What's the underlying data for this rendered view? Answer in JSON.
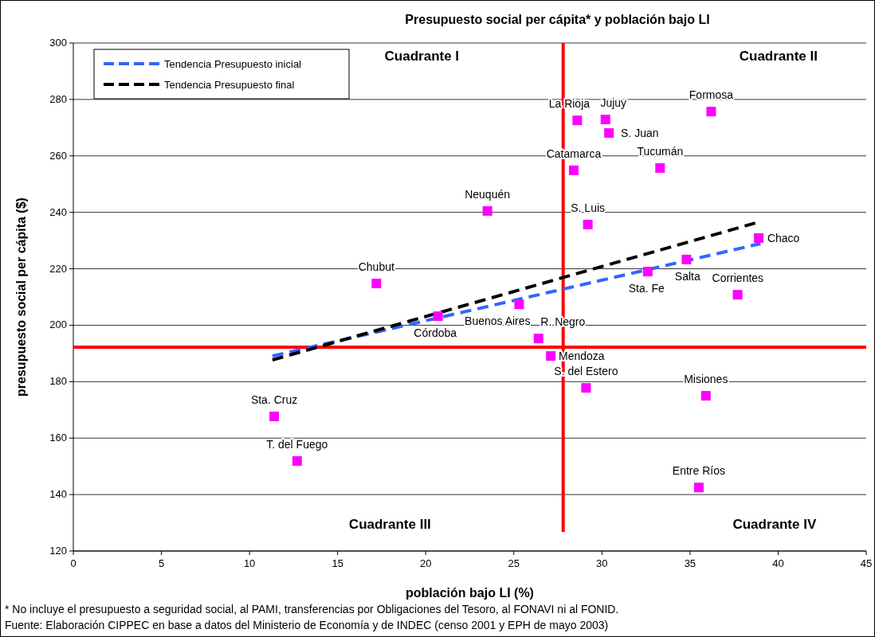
{
  "chart_data": {
    "type": "scatter",
    "title": "Presupuesto social per cápita* y población bajo LI",
    "xlabel": "población bajo LI (%)",
    "ylabel": "presupuesto social per cápita ($)",
    "xlim": [
      0,
      45
    ],
    "xticks": [
      0,
      5,
      10,
      15,
      20,
      25,
      30,
      35,
      40,
      45
    ],
    "ylim": [
      120,
      300
    ],
    "yticks": [
      120,
      140,
      160,
      180,
      200,
      220,
      240,
      260,
      280,
      300
    ],
    "grid": "y",
    "legend": "top left",
    "series": [
      {
        "color": "#ff00ff",
        "marker": "square",
        "x": [
          28.6,
          30.2,
          30.4,
          36.2,
          28.4,
          33.3,
          23.5,
          29.2,
          38.9,
          34.8,
          32.6,
          17.2,
          37.7,
          20.7,
          25.3,
          26.4,
          27.1,
          29.1,
          35.9,
          11.4,
          12.7,
          35.5
        ],
        "values": [
          272.6,
          272.9,
          268.1,
          275.7,
          254.9,
          255.7,
          240.5,
          235.7,
          230.9,
          223.3,
          219,
          214.8,
          210.8,
          203.2,
          207.4,
          195.3,
          189.1,
          177.8,
          175,
          167.7,
          151.9,
          142.5
        ]
      },
      {
        "type": "line",
        "name": "Tendencia Presupuesto inicial",
        "color": "#3366ff",
        "line_style": "dashed",
        "x": [
          11.3,
          39.0
        ],
        "values": [
          189.1,
          228.9
        ]
      },
      {
        "type": "line",
        "name": "Tendencia Presupuesto final",
        "color": "#000000",
        "line_style": "dashed",
        "x": [
          11.3,
          38.7
        ],
        "values": [
          187.7,
          236.2
        ]
      }
    ],
    "ref_lines": [
      {
        "axis": "x",
        "value": 27.8,
        "color": "#ff0000"
      },
      {
        "axis": "y",
        "value": 192.2,
        "color": "#ff0000"
      }
    ],
    "annotations": [
      {
        "text": "La Rioja",
        "x": 28.6,
        "y": 272.6
      },
      {
        "text": "Jujuy",
        "x": 30.2,
        "y": 272.9
      },
      {
        "text": "S. Juan",
        "x": 30.4,
        "y": 268.1
      },
      {
        "text": "Formosa",
        "x": 36.2,
        "y": 275.7
      },
      {
        "text": "Catamarca",
        "x": 28.4,
        "y": 254.9
      },
      {
        "text": "Tucumán",
        "x": 33.3,
        "y": 255.7
      },
      {
        "text": "Neuquén",
        "x": 23.5,
        "y": 240.5
      },
      {
        "text": "S. Luis",
        "x": 29.2,
        "y": 235.7
      },
      {
        "text": "Chaco",
        "x": 38.9,
        "y": 230.9
      },
      {
        "text": "Salta",
        "x": 34.8,
        "y": 223.3
      },
      {
        "text": "Sta. Fe",
        "x": 32.6,
        "y": 219
      },
      {
        "text": "Chubut",
        "x": 17.2,
        "y": 214.8
      },
      {
        "text": "Corrientes",
        "x": 37.7,
        "y": 210.8
      },
      {
        "text": "Córdoba",
        "x": 20.7,
        "y": 203.2
      },
      {
        "text": "Buenos Aires",
        "x": 25.3,
        "y": 207.4
      },
      {
        "text": "R. Negro",
        "x": 26.4,
        "y": 195.3
      },
      {
        "text": "Mendoza",
        "x": 27.1,
        "y": 189.1
      },
      {
        "text": "S. del Estero",
        "x": 29.1,
        "y": 177.8
      },
      {
        "text": "Misiones",
        "x": 35.9,
        "y": 175
      },
      {
        "text": "Sta. Cruz",
        "x": 11.4,
        "y": 167.7
      },
      {
        "text": "T. del Fuego",
        "x": 12.7,
        "y": 151.9
      },
      {
        "text": "Entre Ríos",
        "x": 35.5,
        "y": 142.5
      },
      "Cuadrante I",
      "Cuadrante II",
      "Cuadrante III",
      "Cuadrante IV",
      "* No incluye el presupuesto a seguridad social, al PAMI, transferencias por Obligaciones del Tesoro, al FONAVI ni al FONID.",
      "Fuente: Elaboración CIPPEC en base a datos del Ministerio de Economía y de INDEC (censo 2001 y EPH de mayo 2003)"
    ]
  }
}
